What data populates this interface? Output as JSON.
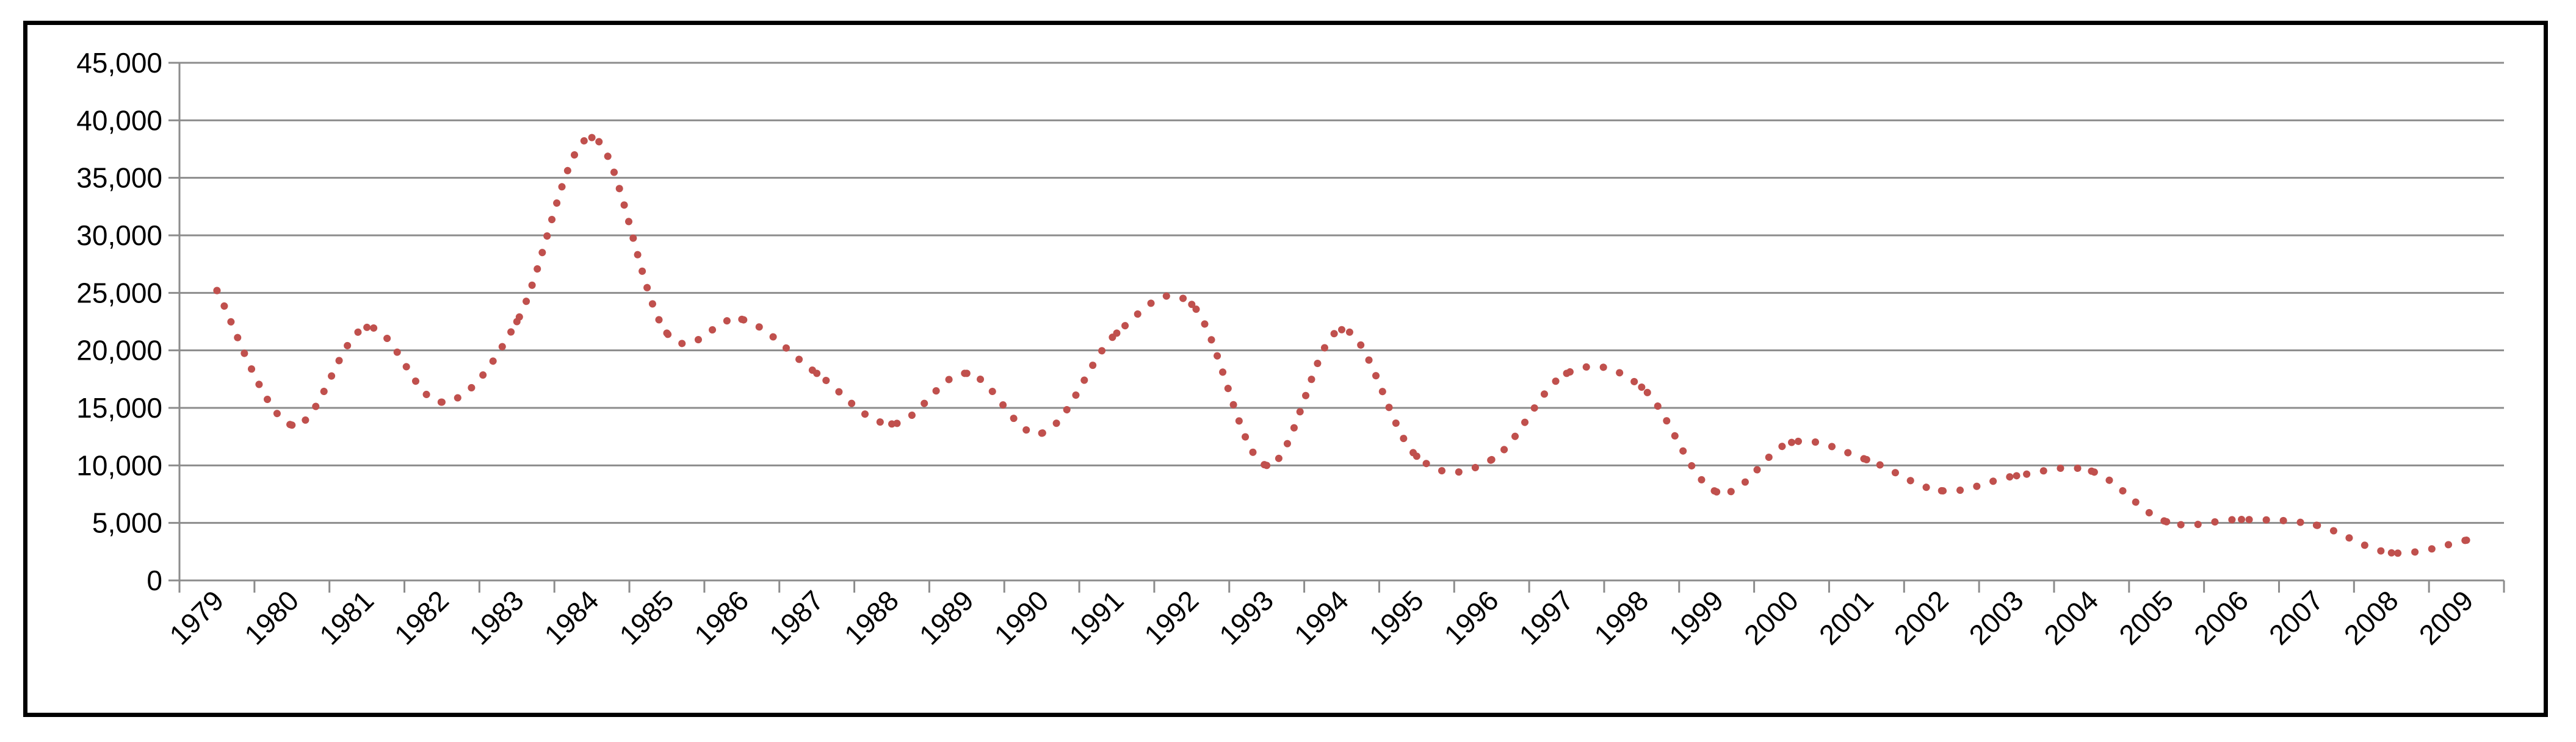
{
  "chart_data": {
    "type": "line",
    "title": "",
    "xlabel": "",
    "ylabel": "",
    "x": [
      "1979",
      "1980",
      "1981",
      "1982",
      "1983",
      "1984",
      "1985",
      "1986",
      "1987",
      "1988",
      "1989",
      "1990",
      "1991",
      "1992",
      "1993",
      "1994",
      "1995",
      "1996",
      "1997",
      "1998",
      "1999",
      "2000",
      "2001",
      "2002",
      "2003",
      "2004",
      "2005",
      "2006",
      "2007",
      "2008",
      "2009"
    ],
    "y_ticks": [
      "0",
      "5,000",
      "10,000",
      "15,000",
      "20,000",
      "25,000",
      "30,000",
      "35,000",
      "40,000",
      "45,000"
    ],
    "ylim": [
      0,
      45000
    ],
    "grid": true,
    "legend": "none",
    "series": [
      {
        "color": "#c0504d",
        "line_style": "dotted",
        "values": [
          25200,
          13500,
          22000,
          15500,
          22500,
          38500,
          21500,
          22700,
          18000,
          13600,
          18000,
          12800,
          21500,
          24000,
          10000,
          21800,
          10800,
          10500,
          18000,
          16800,
          7700,
          12000,
          10500,
          7800,
          9100,
          9500,
          5100,
          5300,
          4800,
          2400,
          3500
        ]
      }
    ]
  }
}
